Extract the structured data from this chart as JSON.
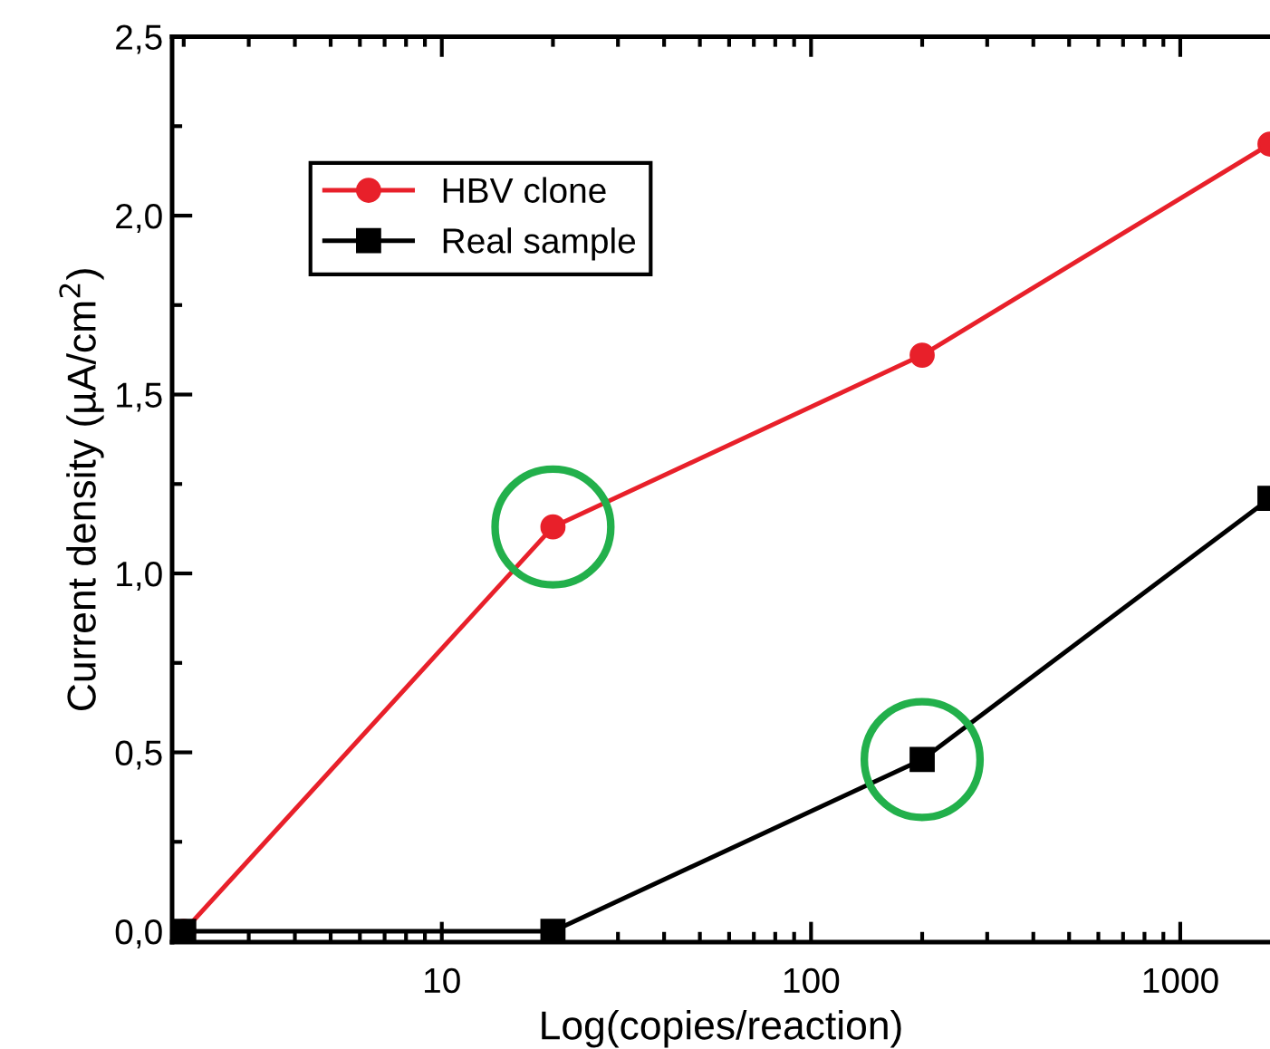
{
  "chart_data": {
    "type": "line",
    "xlabel": "Log(copies/reaction)",
    "ylabel": "Current density (µA/cm$^{2}$)",
    "log": "x",
    "xlim": [
      1.86,
      1750
    ],
    "xticks": [
      10,
      100,
      1000
    ],
    "ylim": [
      -0.03,
      2.5
    ],
    "yticks": [
      {
        "value": 0,
        "label": "0,0"
      },
      {
        "value": 0.5,
        "label": "0,5"
      },
      {
        "value": 1,
        "label": "1,0"
      },
      {
        "value": 1.5,
        "label": "1,5"
      },
      {
        "value": 2,
        "label": "2,0"
      },
      {
        "value": 2.5,
        "label": "2,5"
      }
    ],
    "grid": false,
    "legend": "top left",
    "x": [
      2,
      20,
      200,
      1750
    ],
    "series": [
      {
        "name": "HBV clone",
        "color": "#e8202a",
        "marker": "circle",
        "values": [
          0,
          1.13,
          1.61,
          2.2
        ]
      },
      {
        "name": "Real sample",
        "color": "#000000",
        "marker": "square",
        "values": [
          0,
          0,
          0.48,
          1.21
        ]
      }
    ]
  }
}
